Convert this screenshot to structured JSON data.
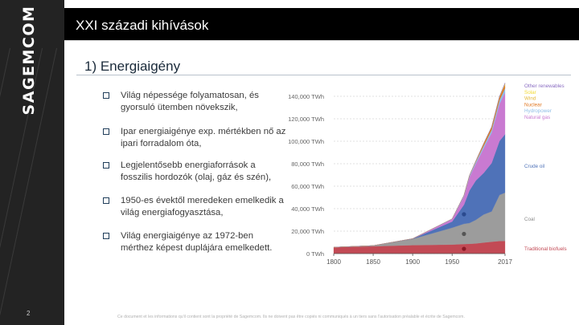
{
  "brand": {
    "name": "SAGEMCOM"
  },
  "slide": {
    "title": "XXI századi kihívások",
    "heading": "1) Energiaigény",
    "number": "2",
    "footer": "Ce document et les informations qu'il contient sont la propriété de Sagemcom. Ils ne doivent pas être copiés ni communiqués à un tiers sans l'autorisation préalable et écrite de Sagemcom."
  },
  "bullets": [
    "Világ népessége folyamatosan, és gyorsuló ütemben növekszik,",
    "Ipar energiaigénye exp. mértékben nő az ipari forradalom óta,",
    "Legjelentősebb energiaforrások a fosszilis hordozók (olaj, gáz és szén),",
    "1950-es évektől meredeken emelkedik a világ energiafogyasztása,",
    "Világ energiaigénye az 1972-ben mérthez képest duplájára emelkedett."
  ],
  "chart_data": {
    "type": "area",
    "title": "",
    "xlabel": "",
    "ylabel": "",
    "x": [
      1800,
      1850,
      1900,
      1950,
      1965,
      1972,
      1980,
      1990,
      2000,
      2010,
      2017
    ],
    "x_ticks": [
      "1800",
      "1850",
      "1900",
      "1950",
      "2017"
    ],
    "x_tick_values": [
      1800,
      1850,
      1900,
      1950,
      2017
    ],
    "y_ticks": [
      "0 TWh",
      "20,000 TWh",
      "40,000 TWh",
      "60,000 TWh",
      "80,000 TWh",
      "100,000 TWh",
      "120,000 TWh",
      "140,000 TWh"
    ],
    "y_tick_values": [
      0,
      20000,
      40000,
      60000,
      80000,
      100000,
      120000,
      140000
    ],
    "ylim": [
      0,
      150000
    ],
    "xlim": [
      1800,
      2017
    ],
    "series": [
      {
        "name": "Traditional biofuels",
        "color": "#c24a55",
        "values": [
          5600,
          6500,
          7500,
          8000,
          8500,
          8700,
          9000,
          9800,
          10500,
          11200,
          11200
        ]
      },
      {
        "name": "Coal",
        "color": "#9c9c9c",
        "values": [
          100,
          600,
          5500,
          15000,
          18000,
          18500,
          21000,
          25000,
          27000,
          41000,
          43000
        ]
      },
      {
        "name": "Crude oil",
        "color": "#4f72b8",
        "values": [
          0,
          0,
          200,
          5500,
          17000,
          29000,
          35000,
          37000,
          43000,
          48000,
          52000
        ]
      },
      {
        "name": "Natural gas",
        "color": "#c97ad1",
        "values": [
          0,
          0,
          100,
          2100,
          7500,
          12000,
          15000,
          22000,
          27000,
          33000,
          37000
        ]
      },
      {
        "name": "Hydropower",
        "color": "#8fbde6",
        "values": [
          0,
          0,
          0,
          300,
          900,
          1200,
          1700,
          2200,
          2600,
          3400,
          4100
        ]
      },
      {
        "name": "Nuclear",
        "color": "#e0761f",
        "values": [
          0,
          0,
          0,
          0,
          30,
          250,
          700,
          2000,
          2500,
          2700,
          2600
        ]
      },
      {
        "name": "Wind",
        "color": "#e3b93a",
        "values": [
          0,
          0,
          0,
          0,
          0,
          0,
          0,
          10,
          30,
          340,
          1100
        ]
      },
      {
        "name": "Solar",
        "color": "#f2da30",
        "values": [
          0,
          0,
          0,
          0,
          0,
          0,
          0,
          0,
          0,
          30,
          440
        ]
      },
      {
        "name": "Other renewables",
        "color": "#8a6cc2",
        "values": [
          0,
          0,
          0,
          0,
          20,
          50,
          90,
          150,
          200,
          440,
          580
        ]
      }
    ],
    "legend_position": "right",
    "grid": true
  }
}
